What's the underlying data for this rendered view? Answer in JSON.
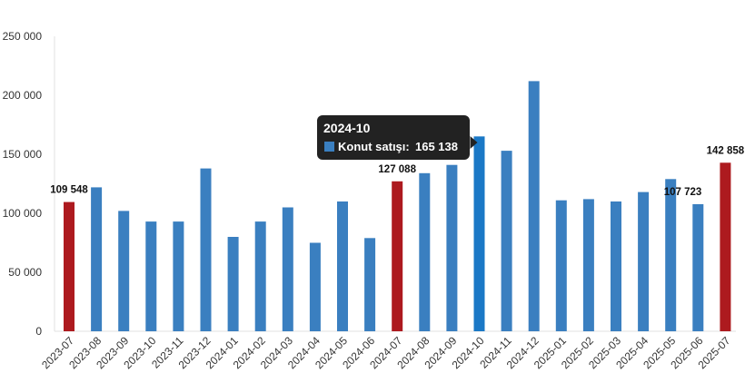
{
  "chart_data": {
    "type": "bar",
    "categories": [
      "2023-07",
      "2023-08",
      "2023-09",
      "2023-10",
      "2023-11",
      "2023-12",
      "2024-01",
      "2024-02",
      "2024-03",
      "2024-04",
      "2024-05",
      "2024-06",
      "2024-07",
      "2024-08",
      "2024-09",
      "2024-10",
      "2024-11",
      "2024-12",
      "2025-01",
      "2025-02",
      "2025-03",
      "2025-04",
      "2025-05",
      "2025-06",
      "2025-07"
    ],
    "series": [
      {
        "name": "Konut satışı",
        "values": [
          109548,
          122000,
          102000,
          93000,
          93000,
          138000,
          80000,
          93000,
          105000,
          75000,
          110000,
          79000,
          127088,
          134000,
          141000,
          165138,
          153000,
          212000,
          111000,
          112000,
          110000,
          118000,
          129000,
          107723,
          142858
        ]
      }
    ],
    "ylim": [
      0,
      250000
    ],
    "yticks": [
      0,
      50000,
      100000,
      150000,
      200000,
      250000
    ],
    "ytick_labels": [
      "0",
      "50 000",
      "100 000",
      "150 000",
      "200 000",
      "250 000"
    ],
    "grid": false,
    "colors": {
      "default": "#3a7fc0",
      "highlight": "#ad1a1f",
      "hovered": "#1a78c6"
    },
    "highlighted": [
      "2023-07",
      "2024-07",
      "2025-07"
    ],
    "hovered": "2024-10",
    "data_labels": [
      {
        "category": "2023-07",
        "text": "109 548"
      },
      {
        "category": "2024-07",
        "text": "127 088"
      },
      {
        "category": "2025-06",
        "text": "107 723"
      },
      {
        "category": "2025-07",
        "text": "142 858"
      }
    ],
    "tooltip": {
      "category": "2024-10",
      "title": "2024-10",
      "label": "Konut satışı:",
      "value": "165 138",
      "swatch": "#3a7fc0",
      "background": "#222222"
    }
  }
}
